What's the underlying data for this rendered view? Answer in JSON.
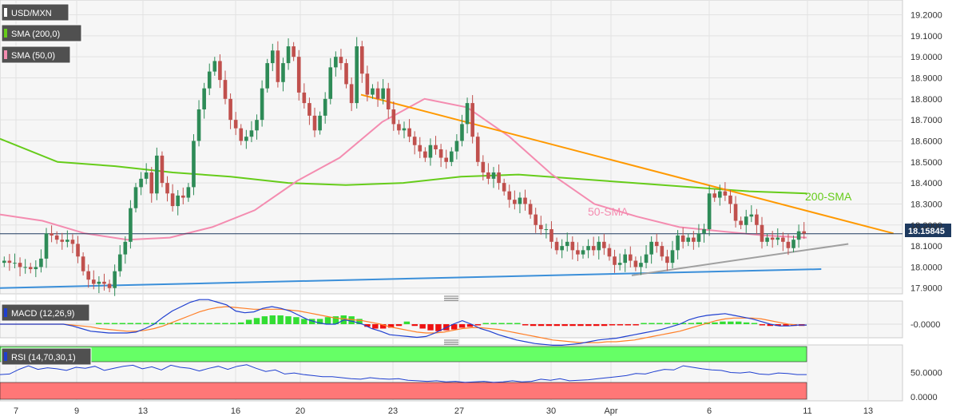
{
  "legend": {
    "symbol": "USD/MXN",
    "sma200": "SMA (200,0)",
    "sma50": "SMA (50,0)",
    "macd": "MACD (12,26,9)",
    "rsi": "RSI (14,70,30,1)"
  },
  "annotations": {
    "sma200": "200-SMA",
    "sma50": "50-SMA"
  },
  "colors": {
    "up": "#2e8b57",
    "down": "#c0504d",
    "sma200": "#66cc1a",
    "sma50": "#f48cb0",
    "resistance": "#ff9900",
    "support_low": "#3b8fd9",
    "support_mid": "#a0a0a0",
    "macd": "#1f3fd0",
    "signal": "#ff7f27",
    "hist_up": "#33dd33",
    "hist_down": "#ee1111",
    "rsi": "#1f3fd0",
    "overbought": "#66ff66",
    "oversold": "#ff7777",
    "price_tag": "#1e3a5f"
  },
  "chart_data": [
    {
      "type": "candlestick",
      "title": "USD/MXN",
      "x_tick_labels": [
        "7",
        "9",
        "13",
        "16",
        "20",
        "23",
        "27",
        "30",
        "Apr",
        "6",
        "11",
        "13"
      ],
      "y_tick_labels": [
        "19.2000",
        "19.1000",
        "19.0000",
        "18.9000",
        "18.8000",
        "18.7000",
        "18.6000",
        "18.5000",
        "18.4000",
        "18.3000",
        "18.2000",
        "18.1000",
        "18.0000",
        "17.9000"
      ],
      "ylim": [
        17.88,
        19.24
      ],
      "current_price": "18.15845",
      "close_series": [
        18.03,
        18.02,
        18.02,
        18.0,
        18.0,
        17.99,
        18.0,
        18.04,
        18.16,
        18.15,
        18.13,
        18.12,
        18.13,
        18.11,
        18.05,
        17.98,
        17.94,
        17.92,
        17.93,
        17.92,
        17.9,
        17.98,
        18.06,
        18.12,
        18.28,
        18.38,
        18.42,
        18.45,
        18.35,
        18.53,
        18.4,
        18.35,
        18.29,
        18.34,
        18.33,
        18.38,
        18.6,
        18.75,
        18.85,
        18.93,
        18.98,
        18.89,
        18.8,
        18.7,
        18.66,
        18.6,
        18.62,
        18.65,
        18.7,
        18.85,
        18.97,
        19.03,
        18.88,
        18.97,
        19.05,
        19.0,
        18.83,
        18.78,
        18.72,
        18.65,
        18.72,
        18.8,
        18.95,
        19.0,
        18.97,
        18.87,
        18.78,
        19.05,
        18.92,
        18.82,
        18.85,
        18.8,
        18.85,
        18.75,
        18.68,
        18.65,
        18.66,
        18.62,
        18.58,
        18.55,
        18.52,
        18.58,
        18.56,
        18.52,
        18.5,
        18.55,
        18.6,
        18.68,
        18.78,
        18.62,
        18.5,
        18.45,
        18.42,
        18.45,
        18.4,
        18.36,
        18.32,
        18.3,
        18.33,
        18.3,
        18.25,
        18.2,
        18.18,
        18.18,
        18.12,
        18.08,
        18.1,
        18.12,
        18.08,
        18.06,
        18.08,
        18.1,
        18.08,
        18.12,
        18.09,
        18.05,
        18.01,
        18.02,
        18.06,
        18.03,
        18.0,
        18.02,
        18.06,
        18.12,
        18.1,
        18.05,
        18.02,
        18.08,
        18.15,
        18.12,
        18.14,
        18.12,
        18.16,
        18.18,
        18.35,
        18.33,
        18.36,
        18.34,
        18.3,
        18.22,
        18.2,
        18.24,
        18.25,
        18.2,
        18.12,
        18.14,
        18.13,
        18.14,
        18.12,
        18.09,
        18.13,
        18.17,
        18.16
      ],
      "sma200_series": [
        18.61,
        18.5,
        18.48,
        18.45,
        18.43,
        18.4,
        18.39,
        18.4,
        18.43,
        18.44,
        18.42,
        18.4,
        18.38,
        18.36,
        18.35
      ],
      "sma50_series": [
        18.25,
        18.22,
        18.16,
        18.13,
        18.14,
        18.19,
        18.27,
        18.41,
        18.52,
        18.69,
        18.8,
        18.76,
        18.62,
        18.44,
        18.3,
        18.24,
        18.19,
        18.17,
        18.15,
        18.14
      ],
      "lines": [
        {
          "name": "resistance",
          "from": [
            0.4,
            18.82
          ],
          "to": [
            0.99,
            18.16
          ]
        },
        {
          "name": "support_low",
          "from": [
            0.0,
            17.9
          ],
          "to": [
            0.91,
            17.99
          ]
        },
        {
          "name": "support_mid",
          "from": [
            0.7,
            17.96
          ],
          "to": [
            0.94,
            18.11
          ]
        }
      ]
    },
    {
      "type": "bar",
      "title": "MACD (12,26,9)",
      "y_tick_labels": [
        "-0.0000"
      ],
      "histogram": [
        0,
        0,
        0,
        0,
        0,
        0,
        0,
        0,
        0,
        0,
        0,
        0,
        0,
        0,
        0,
        0,
        0,
        0,
        0.02,
        0.05,
        0.07,
        0.09,
        0.1,
        0.1,
        0.09,
        0.08,
        0.06,
        0.06,
        0.06,
        0.08,
        0.09,
        0.1,
        0.09,
        0.06,
        -0.03,
        -0.05,
        -0.05,
        -0.04,
        -0.02,
        0.03,
        -0.02,
        -0.05,
        -0.07,
        -0.08,
        -0.07,
        -0.06,
        -0.04,
        -0.03,
        -0.01,
        0,
        0,
        0.01,
        0,
        0,
        -0.01,
        -0.02,
        -0.02,
        -0.02,
        -0.02,
        -0.02,
        -0.02,
        -0.02,
        -0.02,
        -0.02,
        -0.02,
        -0.01,
        -0.01,
        -0.01,
        -0.01,
        0,
        0,
        0,
        0,
        0.01,
        0.01,
        0.01,
        0.02,
        0.02,
        0.02,
        0.03,
        0.03,
        0.03,
        0.02,
        0.01,
        -0.01,
        -0.02,
        -0.02,
        -0.02,
        -0.02,
        -0.02
      ],
      "macd_series": [
        0,
        0,
        0,
        0,
        0,
        0,
        0,
        0,
        -0.02,
        -0.05,
        -0.08,
        -0.09,
        -0.1,
        -0.1,
        -0.1,
        -0.09,
        -0.05,
        0.0,
        0.08,
        0.15,
        0.2,
        0.25,
        0.28,
        0.28,
        0.25,
        0.22,
        0.15,
        0.13,
        0.14,
        0.18,
        0.2,
        0.18,
        0.15,
        0.1,
        0.05,
        0.02,
        0.0,
        0.0,
        0.05,
        0.03,
        0.0,
        -0.05,
        -0.08,
        -0.12,
        -0.13,
        -0.14,
        -0.15,
        -0.14,
        -0.1,
        -0.05,
        0.0,
        0.04,
        0.0,
        -0.05,
        -0.08,
        -0.12,
        -0.15,
        -0.18,
        -0.2,
        -0.22,
        -0.23,
        -0.24,
        -0.24,
        -0.23,
        -0.22,
        -0.2,
        -0.18,
        -0.17,
        -0.16,
        -0.14,
        -0.12,
        -0.1,
        -0.08,
        -0.06,
        -0.03,
        0.0,
        0.05,
        0.08,
        0.1,
        0.11,
        0.12,
        0.1,
        0.08,
        0.06,
        0.03,
        0.0,
        -0.02,
        -0.02,
        -0.01,
        -0.01
      ],
      "signal_series": [
        0,
        0,
        0,
        0,
        0,
        0,
        0,
        0,
        -0.01,
        -0.02,
        -0.03,
        -0.05,
        -0.06,
        -0.07,
        -0.08,
        -0.08,
        -0.07,
        -0.05,
        -0.02,
        0.02,
        0.06,
        0.1,
        0.14,
        0.17,
        0.19,
        0.2,
        0.19,
        0.18,
        0.17,
        0.17,
        0.17,
        0.17,
        0.16,
        0.15,
        0.13,
        0.11,
        0.09,
        0.07,
        0.06,
        0.05,
        0.04,
        0.02,
        0.0,
        -0.03,
        -0.05,
        -0.07,
        -0.09,
        -0.1,
        -0.1,
        -0.09,
        -0.07,
        -0.05,
        -0.04,
        -0.04,
        -0.05,
        -0.06,
        -0.08,
        -0.1,
        -0.12,
        -0.14,
        -0.16,
        -0.18,
        -0.19,
        -0.2,
        -0.21,
        -0.21,
        -0.21,
        -0.2,
        -0.2,
        -0.19,
        -0.18,
        -0.16,
        -0.14,
        -0.12,
        -0.1,
        -0.08,
        -0.05,
        -0.02,
        0.01,
        0.04,
        0.06,
        0.07,
        0.07,
        0.07,
        0.06,
        0.04,
        0.02,
        0.0,
        -0.01,
        -0.01
      ]
    },
    {
      "type": "line",
      "title": "RSI (14,70,30,1)",
      "y_tick_labels": [
        "50.0000",
        "0.0000"
      ],
      "ylim": [
        0,
        100
      ],
      "overbought": 70,
      "oversold": 30,
      "series": [
        {
          "values": [
            46,
            47,
            56,
            63,
            56,
            59,
            57,
            54,
            60,
            58,
            62,
            54,
            58,
            62,
            64,
            57,
            61,
            55,
            64,
            60,
            58,
            53,
            58,
            62,
            56,
            62,
            65,
            58,
            52,
            55,
            47,
            49,
            46,
            44,
            42,
            42,
            40,
            38,
            37,
            40,
            38,
            37,
            38,
            35,
            34,
            33,
            34,
            32,
            33,
            31,
            32,
            33,
            31,
            32,
            34,
            32,
            33,
            37,
            35,
            38,
            34,
            35,
            36,
            38,
            40,
            42,
            44,
            48,
            47,
            52,
            56,
            55,
            63,
            60,
            57,
            55,
            54,
            50,
            49,
            51,
            47,
            46,
            49,
            48,
            46,
            46
          ]
        }
      ]
    }
  ]
}
